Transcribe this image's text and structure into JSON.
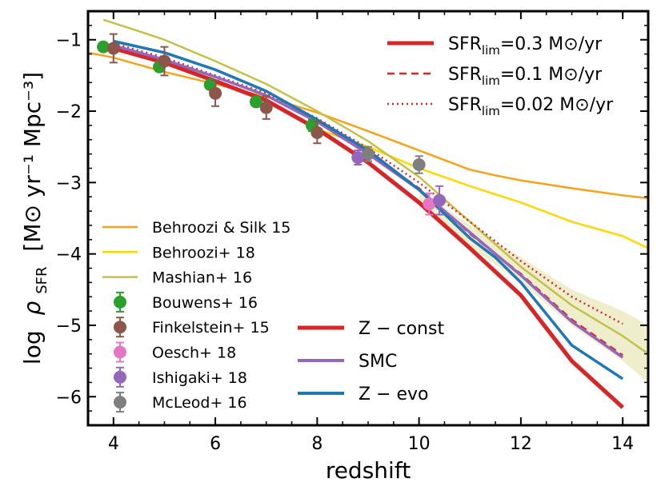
{
  "chart_data": {
    "type": "line",
    "title": "",
    "xlabel": "redshift",
    "ylabel_log": "log",
    "ylabel_rho": "ρ",
    "ylabel_sub": "SFR",
    "ylabel_units": "[M⊙ yr⁻¹ Mpc⁻³]",
    "xlim": [
      3.5,
      14.5
    ],
    "ylim": [
      -6.4,
      -0.6
    ],
    "xticks": [
      4,
      6,
      8,
      10,
      12,
      14
    ],
    "xtick_labels": [
      "4",
      "6",
      "8",
      "10",
      "12",
      "14"
    ],
    "yticks": [
      -6,
      -5,
      -4,
      -3,
      -2,
      -1
    ],
    "ytick_labels": [
      "−6",
      "−5",
      "−4",
      "−3",
      "−2",
      "−1"
    ],
    "shaded_band": {
      "name": "Mashian+ 16 uncertainty",
      "color": "#eeeecc",
      "x": [
        10,
        11,
        12,
        13,
        14,
        14.5
      ],
      "y_low": [
        -3.3,
        -3.9,
        -4.4,
        -5.0,
        -5.5,
        -5.8
      ],
      "y_high": [
        -3.1,
        -3.6,
        -4.05,
        -4.5,
        -4.8,
        -5.0
      ]
    },
    "model_lines": [
      {
        "name": "Behroozi & Silk 15",
        "color": "#f5a31a",
        "width": 2.5,
        "x": [
          3.5,
          4,
          5,
          6,
          7,
          8,
          9,
          10,
          11,
          11.5,
          12,
          13,
          14,
          14.5
        ],
        "y": [
          -1.18,
          -1.25,
          -1.45,
          -1.62,
          -1.8,
          -2.02,
          -2.28,
          -2.55,
          -2.82,
          -2.9,
          -2.97,
          -3.08,
          -3.18,
          -3.22
        ]
      },
      {
        "name": "Behroozi+ 18",
        "color": "#ffd700",
        "width": 2.5,
        "x": [
          8,
          9,
          10,
          11,
          12,
          13,
          14,
          14.5
        ],
        "y": [
          -2.25,
          -2.5,
          -2.8,
          -3.05,
          -3.28,
          -3.55,
          -3.75,
          -3.92
        ]
      },
      {
        "name": "Mashian+ 16",
        "color": "#c4c14a",
        "width": 2.5,
        "x": [
          3.8,
          4.5,
          5,
          6,
          7,
          8,
          9,
          10,
          11,
          12,
          13,
          14,
          14.5
        ],
        "y": [
          -0.72,
          -0.88,
          -1.0,
          -1.3,
          -1.62,
          -2.0,
          -2.42,
          -2.92,
          -3.55,
          -4.18,
          -4.72,
          -5.15,
          -5.4
        ]
      }
    ],
    "series": [
      {
        "name": "SFR_lim=0.3 M⊙/yr",
        "color": "#d62728",
        "width": 5,
        "dash": "",
        "x": [
          4,
          5,
          6,
          7,
          8,
          9,
          10,
          11,
          12,
          13,
          14
        ],
        "y": [
          -1.12,
          -1.32,
          -1.58,
          -1.85,
          -2.25,
          -2.72,
          -3.28,
          -3.92,
          -4.58,
          -5.5,
          -6.15
        ]
      },
      {
        "name": "SFR_lim=0.1 M⊙/yr",
        "color": "#d62728",
        "width": 2.5,
        "dash": "9,6",
        "x": [
          4,
          5,
          6,
          7,
          8,
          9,
          10,
          11,
          12,
          13,
          14
        ],
        "y": [
          -1.08,
          -1.28,
          -1.52,
          -1.78,
          -2.15,
          -2.58,
          -3.08,
          -3.72,
          -4.28,
          -4.92,
          -5.42
        ]
      },
      {
        "name": "SFR_lim=0.02 M⊙/yr",
        "color": "#d62728",
        "width": 2.5,
        "dash": "2,4",
        "x": [
          4,
          5,
          6,
          7,
          8,
          9,
          10,
          11,
          12,
          13,
          14
        ],
        "y": [
          -1.05,
          -1.25,
          -1.5,
          -1.75,
          -2.1,
          -2.52,
          -3.0,
          -3.55,
          -4.1,
          -4.6,
          -4.98
        ]
      },
      {
        "name": "Z-const",
        "color": "#d62728",
        "width": 5,
        "dash": "",
        "x": [
          4,
          5,
          6,
          7,
          8,
          9,
          10,
          11,
          12,
          13,
          14
        ],
        "y": [
          -1.12,
          -1.32,
          -1.58,
          -1.85,
          -2.25,
          -2.72,
          -3.28,
          -3.92,
          -4.58,
          -5.5,
          -6.15
        ]
      },
      {
        "name": "SMC",
        "color": "#9467bd",
        "width": 3.5,
        "dash": "",
        "x": [
          4,
          5,
          6,
          7,
          8,
          9,
          10,
          11,
          12,
          13,
          14
        ],
        "y": [
          -1.08,
          -1.28,
          -1.52,
          -1.78,
          -2.15,
          -2.6,
          -3.1,
          -3.7,
          -4.3,
          -4.95,
          -5.45
        ]
      },
      {
        "name": "Z-evo",
        "color": "#1f77b4",
        "width": 3.5,
        "dash": "",
        "x": [
          4,
          5,
          6,
          7,
          8,
          9,
          10,
          11,
          11.5,
          12,
          13,
          14
        ],
        "y": [
          -1.02,
          -1.18,
          -1.42,
          -1.72,
          -2.12,
          -2.55,
          -3.1,
          -3.78,
          -4.05,
          -4.4,
          -5.28,
          -5.75
        ]
      }
    ],
    "observations": [
      {
        "name": "Bouwens+ 16",
        "color": "#2ca02c",
        "points": [
          {
            "x": 3.8,
            "y": -1.1,
            "err": 0.05
          },
          {
            "x": 4.9,
            "y": -1.38,
            "err": 0.06
          },
          {
            "x": 5.9,
            "y": -1.63,
            "err": 0.06
          },
          {
            "x": 6.8,
            "y": -1.87,
            "err": 0.06
          },
          {
            "x": 7.9,
            "y": -2.2,
            "err": 0.08
          }
        ]
      },
      {
        "name": "Finkelstein+ 15",
        "color": "#8c564b",
        "points": [
          {
            "x": 4.0,
            "y": -1.12,
            "err": 0.2
          },
          {
            "x": 5.0,
            "y": -1.3,
            "err": 0.2
          },
          {
            "x": 6.0,
            "y": -1.75,
            "err": 0.18
          },
          {
            "x": 7.0,
            "y": -1.95,
            "err": 0.16
          },
          {
            "x": 8.0,
            "y": -2.3,
            "err": 0.15
          }
        ]
      },
      {
        "name": "Oesch+ 18",
        "color": "#e377c2",
        "points": [
          {
            "x": 10.2,
            "y": -3.3,
            "err": 0.15
          }
        ]
      },
      {
        "name": "Ishigaki+ 18",
        "color": "#9467bd",
        "points": [
          {
            "x": 8.8,
            "y": -2.65,
            "err": 0.1
          },
          {
            "x": 10.4,
            "y": -3.25,
            "err": 0.2
          }
        ]
      },
      {
        "name": "McLeod+ 16",
        "color": "#7f7f7f",
        "points": [
          {
            "x": 9.0,
            "y": -2.6,
            "err": 0.1
          },
          {
            "x": 10.0,
            "y": -2.75,
            "err": 0.12
          }
        ]
      }
    ],
    "legend_top_right": {
      "entries": [
        {
          "label": "SFR",
          "sub": "lim",
          "value": "=0.3 M⊙/yr",
          "color": "#d62728",
          "width": 5,
          "dash": ""
        },
        {
          "label": "SFR",
          "sub": "lim",
          "value": "=0.1 M⊙/yr",
          "color": "#d62728",
          "width": 2.5,
          "dash": "9,6"
        },
        {
          "label": "SFR",
          "sub": "lim",
          "value": "=0.02 M⊙/yr",
          "color": "#d62728",
          "width": 2.5,
          "dash": "2,4"
        }
      ]
    },
    "legend_bottom_left": {
      "entries": [
        {
          "label": "Behroozi & Silk 15",
          "kind": "line",
          "color": "#f5a31a"
        },
        {
          "label": "Behroozi+ 18",
          "kind": "line",
          "color": "#ffd700"
        },
        {
          "label": "Mashian+ 16",
          "kind": "line",
          "color": "#c4c14a"
        },
        {
          "label": "Bouwens+ 16",
          "kind": "marker",
          "color": "#2ca02c"
        },
        {
          "label": "Finkelstein+ 15",
          "kind": "marker",
          "color": "#8c564b"
        },
        {
          "label": "Oesch+ 18",
          "kind": "marker",
          "color": "#e377c2"
        },
        {
          "label": "Ishigaki+ 18",
          "kind": "marker",
          "color": "#9467bd"
        },
        {
          "label": "McLeod+ 16",
          "kind": "marker",
          "color": "#7f7f7f"
        }
      ]
    },
    "legend_bottom_mid": {
      "entries": [
        {
          "label": "Z − const",
          "color": "#d62728",
          "width": 5
        },
        {
          "label": "SMC",
          "color": "#9467bd",
          "width": 4
        },
        {
          "label": "Z − evo",
          "color": "#1f77b4",
          "width": 4
        }
      ]
    }
  }
}
